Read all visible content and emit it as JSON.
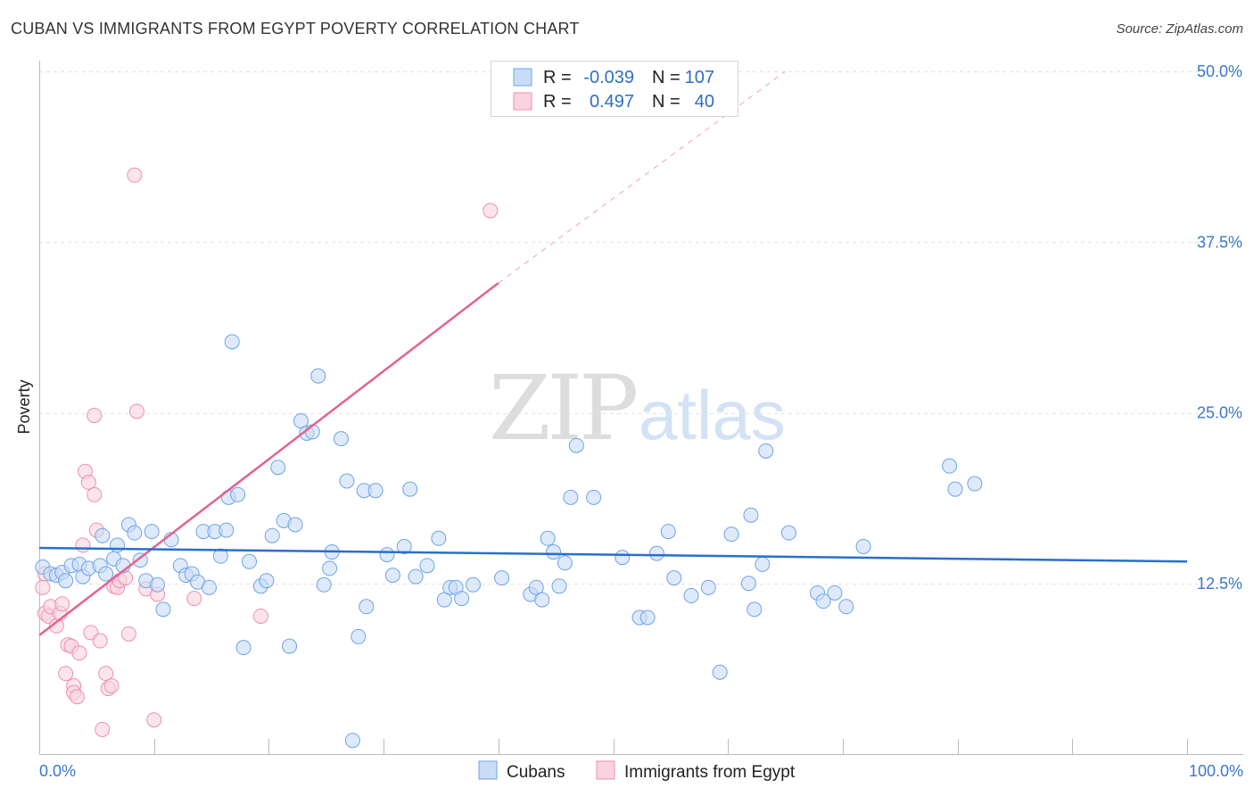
{
  "title": "CUBAN VS IMMIGRANTS FROM EGYPT POVERTY CORRELATION CHART",
  "source": "Source: ZipAtlas.com",
  "watermark": {
    "zip": "ZIP",
    "atlas": "atlas"
  },
  "colors": {
    "cubans": "#6fa3e6",
    "cubans_fill": "#c8dcf6",
    "egypt": "#ee8fae",
    "egypt_fill": "#f9d3df",
    "cubans_line": "#2a6fcb",
    "egypt_line": "#e5628e",
    "tick": "#3a78c9"
  },
  "legend": {
    "row1": {
      "r_label": "R =",
      "r_value": "-0.039",
      "n_label": "N =",
      "n_value": "107"
    },
    "row2": {
      "r_label": "R =",
      "r_value": "0.497",
      "n_label": "N =",
      "n_value": "40"
    }
  },
  "chart_data": {
    "type": "scatter",
    "title": "CUBAN VS IMMIGRANTS FROM EGYPT POVERTY CORRELATION CHART",
    "xlabel": "",
    "ylabel": "Poverty",
    "xlim": [
      0,
      100
    ],
    "ylim": [
      0,
      50
    ],
    "x_tick_labels": [
      "0.0%",
      "100.0%"
    ],
    "y_ticks": [
      12.5,
      25.0,
      37.5,
      50.0
    ],
    "y_tick_labels": [
      "12.5%",
      "25.0%",
      "37.5%",
      "50.0%"
    ],
    "grid": true,
    "legend_position": "top-center",
    "series": [
      {
        "name": "Cubans",
        "r": -0.039,
        "n": 107,
        "trend": {
          "x0": 0,
          "y0": 15.1,
          "x1": 100,
          "y1": 14.1
        },
        "points": [
          [
            0.3,
            13.7
          ],
          [
            1.0,
            13.2
          ],
          [
            1.5,
            13.1
          ],
          [
            2.0,
            13.3
          ],
          [
            2.3,
            12.7
          ],
          [
            2.8,
            13.8
          ],
          [
            3.5,
            13.9
          ],
          [
            3.8,
            13.0
          ],
          [
            4.3,
            13.6
          ],
          [
            5.3,
            13.8
          ],
          [
            5.5,
            16.0
          ],
          [
            5.8,
            13.2
          ],
          [
            6.5,
            14.3
          ],
          [
            6.8,
            15.3
          ],
          [
            7.3,
            13.8
          ],
          [
            7.8,
            16.8
          ],
          [
            8.3,
            16.2
          ],
          [
            8.8,
            14.2
          ],
          [
            9.3,
            12.7
          ],
          [
            9.8,
            16.3
          ],
          [
            10.3,
            12.4
          ],
          [
            10.8,
            10.6
          ],
          [
            11.5,
            15.7
          ],
          [
            12.3,
            13.8
          ],
          [
            12.8,
            13.1
          ],
          [
            13.3,
            13.2
          ],
          [
            13.8,
            12.6
          ],
          [
            14.3,
            16.3
          ],
          [
            14.8,
            12.2
          ],
          [
            15.3,
            16.3
          ],
          [
            15.8,
            14.5
          ],
          [
            16.5,
            18.8
          ],
          [
            16.3,
            16.4
          ],
          [
            16.8,
            30.2
          ],
          [
            17.3,
            19.0
          ],
          [
            17.8,
            7.8
          ],
          [
            18.3,
            14.1
          ],
          [
            19.3,
            12.3
          ],
          [
            19.8,
            12.7
          ],
          [
            20.3,
            16.0
          ],
          [
            20.8,
            21.0
          ],
          [
            21.3,
            17.1
          ],
          [
            21.8,
            7.9
          ],
          [
            22.3,
            16.8
          ],
          [
            22.8,
            24.4
          ],
          [
            23.3,
            23.5
          ],
          [
            23.8,
            23.6
          ],
          [
            24.3,
            27.7
          ],
          [
            24.8,
            12.4
          ],
          [
            25.3,
            13.6
          ],
          [
            25.5,
            14.8
          ],
          [
            26.3,
            23.1
          ],
          [
            26.8,
            20.0
          ],
          [
            27.3,
            1.0
          ],
          [
            27.8,
            8.6
          ],
          [
            28.3,
            19.3
          ],
          [
            28.5,
            10.8
          ],
          [
            29.3,
            19.3
          ],
          [
            30.3,
            14.6
          ],
          [
            30.8,
            13.1
          ],
          [
            31.8,
            15.2
          ],
          [
            32.3,
            19.4
          ],
          [
            32.8,
            13.0
          ],
          [
            33.8,
            13.8
          ],
          [
            34.8,
            15.8
          ],
          [
            35.3,
            11.3
          ],
          [
            35.8,
            12.2
          ],
          [
            36.3,
            12.2
          ],
          [
            36.8,
            11.4
          ],
          [
            37.8,
            12.4
          ],
          [
            40.3,
            12.9
          ],
          [
            42.8,
            11.7
          ],
          [
            43.3,
            12.2
          ],
          [
            43.8,
            11.3
          ],
          [
            44.3,
            15.8
          ],
          [
            44.8,
            14.8
          ],
          [
            45.3,
            12.3
          ],
          [
            45.8,
            14.0
          ],
          [
            46.3,
            18.8
          ],
          [
            46.8,
            22.6
          ],
          [
            48.3,
            18.8
          ],
          [
            50.8,
            14.4
          ],
          [
            52.3,
            10.0
          ],
          [
            53.0,
            10.0
          ],
          [
            53.8,
            14.7
          ],
          [
            54.8,
            16.3
          ],
          [
            55.3,
            12.9
          ],
          [
            56.8,
            11.6
          ],
          [
            58.3,
            12.2
          ],
          [
            59.3,
            6.0
          ],
          [
            60.3,
            16.1
          ],
          [
            61.8,
            12.5
          ],
          [
            62.3,
            10.6
          ],
          [
            63.0,
            13.9
          ],
          [
            63.3,
            22.2
          ],
          [
            65.3,
            16.2
          ],
          [
            67.8,
            11.8
          ],
          [
            68.3,
            11.2
          ],
          [
            69.3,
            11.8
          ],
          [
            70.3,
            10.8
          ],
          [
            71.8,
            15.2
          ],
          [
            79.3,
            21.1
          ],
          [
            79.8,
            19.4
          ],
          [
            81.5,
            19.8
          ],
          [
            62.0,
            17.5
          ]
        ]
      },
      {
        "name": "Immigrants from Egypt",
        "r": 0.497,
        "n": 40,
        "trend": {
          "x0": 0,
          "y0": 8.7,
          "x1": 40,
          "y1": 34.5
        },
        "trend_ext": {
          "x0": 40,
          "y0": 34.5,
          "x1": 65,
          "y1": 50.0
        },
        "points": [
          [
            0.5,
            13.2
          ],
          [
            0.3,
            12.2
          ],
          [
            0.5,
            10.3
          ],
          [
            0.8,
            10.1
          ],
          [
            1.0,
            10.8
          ],
          [
            1.5,
            9.4
          ],
          [
            1.8,
            10.3
          ],
          [
            2.0,
            11.0
          ],
          [
            2.3,
            5.9
          ],
          [
            2.5,
            8.0
          ],
          [
            2.8,
            7.9
          ],
          [
            3.0,
            5.0
          ],
          [
            3.0,
            4.5
          ],
          [
            3.3,
            4.2
          ],
          [
            3.5,
            7.4
          ],
          [
            3.8,
            15.3
          ],
          [
            4.0,
            20.7
          ],
          [
            4.3,
            19.9
          ],
          [
            4.5,
            8.9
          ],
          [
            4.8,
            24.8
          ],
          [
            4.8,
            19.0
          ],
          [
            5.0,
            16.4
          ],
          [
            5.3,
            8.3
          ],
          [
            5.5,
            1.8
          ],
          [
            5.8,
            5.9
          ],
          [
            6.0,
            4.8
          ],
          [
            6.3,
            5.0
          ],
          [
            6.5,
            12.3
          ],
          [
            6.8,
            12.2
          ],
          [
            7.0,
            12.7
          ],
          [
            7.5,
            12.9
          ],
          [
            7.8,
            8.8
          ],
          [
            8.3,
            42.4
          ],
          [
            8.5,
            25.1
          ],
          [
            9.3,
            12.1
          ],
          [
            10.0,
            2.5
          ],
          [
            10.3,
            11.7
          ],
          [
            13.5,
            11.4
          ],
          [
            19.3,
            10.1
          ],
          [
            39.3,
            39.8
          ]
        ]
      }
    ]
  },
  "bottom_legend": {
    "cubans": "Cubans",
    "egypt": "Immigrants from Egypt"
  }
}
